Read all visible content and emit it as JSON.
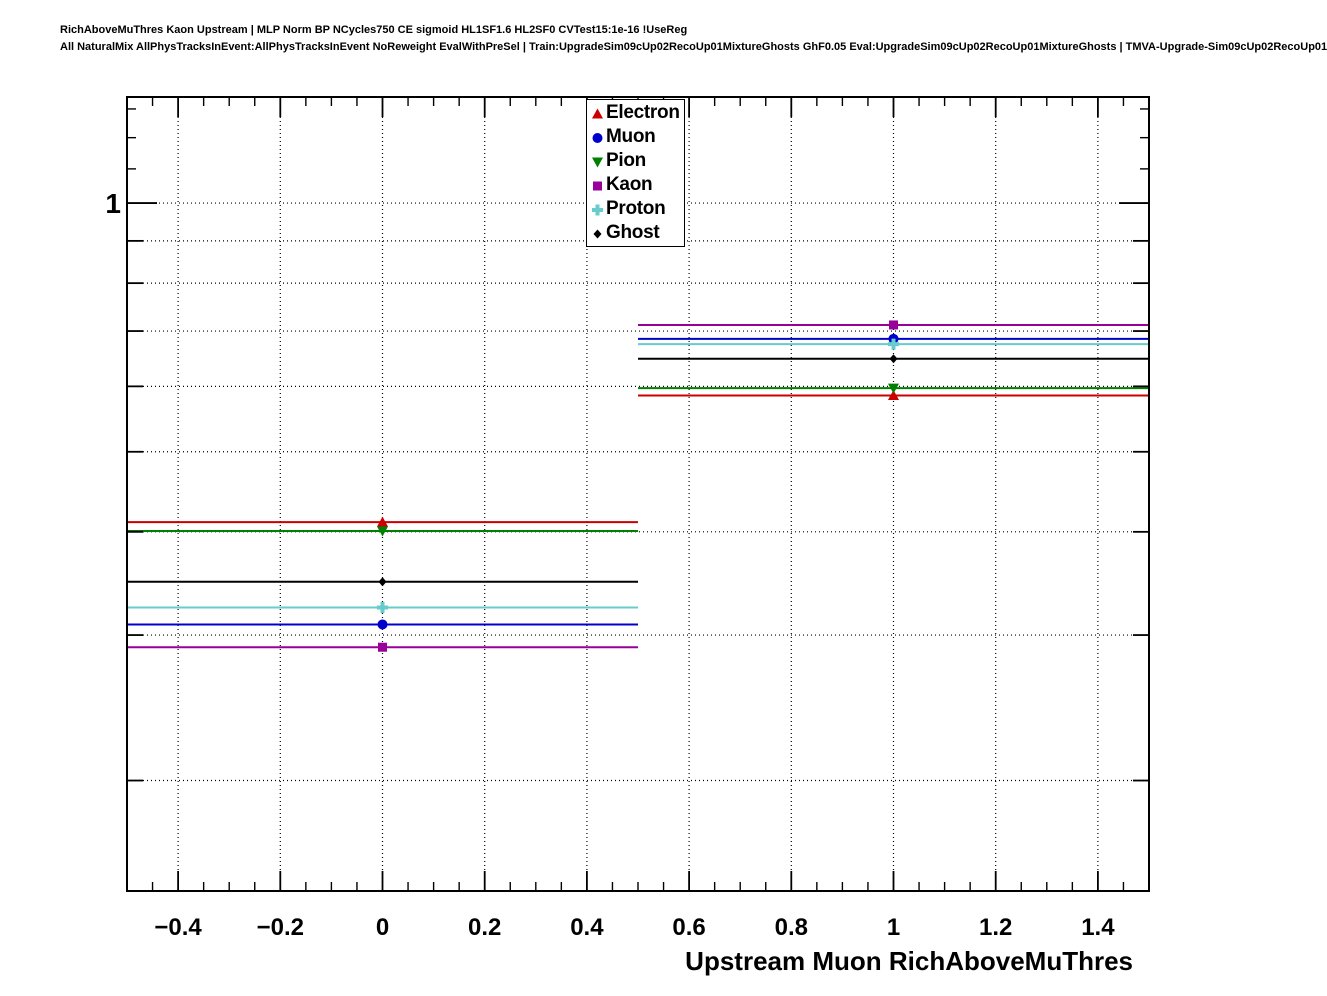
{
  "header": {
    "line1": "RichAboveMuThres Kaon Upstream | MLP Norm BP NCycles750 CE sigmoid HL1SF1.6 HL2SF0 CVTest15:1e-16 !UseReg",
    "line2": "All NaturalMix AllPhysTracksInEvent:AllPhysTracksInEvent NoReweight EvalWithPreSel | Train:UpgradeSim09cUp02RecoUp01MixtureGhosts GhF0.05 Eval:UpgradeSim09cUp02RecoUp01MixtureGhosts | TMVA-Upgrade-Sim09cUp02RecoUp01"
  },
  "axes": {
    "x": {
      "title": "Upstream Muon RichAboveMuThres",
      "min": -0.5,
      "max": 1.5,
      "tick_labels": [
        {
          "value": -0.4,
          "label": "−0.4"
        },
        {
          "value": -0.2,
          "label": "−0.2"
        },
        {
          "value": 0,
          "label": "0"
        },
        {
          "value": 0.2,
          "label": "0.2"
        },
        {
          "value": 0.4,
          "label": "0.4"
        },
        {
          "value": 0.6,
          "label": "0.6"
        },
        {
          "value": 0.8,
          "label": "0.8"
        },
        {
          "value": 1,
          "label": "1"
        },
        {
          "value": 1.2,
          "label": "1.2"
        },
        {
          "value": 1.4,
          "label": "1.4"
        }
      ],
      "minor_tick_step": 0.05
    },
    "y": {
      "scale": "log",
      "min": 0.147,
      "max": 1.344,
      "grid_values": [
        1.0,
        0.9,
        0.8,
        0.7,
        0.6,
        0.5,
        0.4,
        0.3,
        0.2
      ],
      "minor_ticks": [
        1.1,
        1.2,
        1.3
      ],
      "tick_labels": [
        {
          "value": 1,
          "label": "1"
        }
      ]
    }
  },
  "chart_data": {
    "type": "scatter",
    "title": "",
    "xlabel": "Upstream Muon RichAboveMuThres",
    "ylabel": "",
    "xlim": [
      -0.5,
      1.5
    ],
    "ylim_log": [
      0.147,
      1.344
    ],
    "grid": true,
    "legend_position": "top-center",
    "x_bins": [
      {
        "center": 0,
        "low": -0.5,
        "high": 0.5
      },
      {
        "center": 1,
        "low": 0.5,
        "high": 1.5
      }
    ],
    "series": [
      {
        "name": "Electron",
        "color": "#cc0000",
        "marker": "triangle-up",
        "values": [
          0.411,
          0.585
        ]
      },
      {
        "name": "Muon",
        "color": "#0000cc",
        "marker": "circle",
        "values": [
          0.309,
          0.685
        ]
      },
      {
        "name": "Pion",
        "color": "#008000",
        "marker": "triangle-down",
        "values": [
          0.401,
          0.597
        ]
      },
      {
        "name": "Kaon",
        "color": "#990099",
        "marker": "square",
        "values": [
          0.29,
          0.712
        ]
      },
      {
        "name": "Proton",
        "color": "#66cccc",
        "marker": "plus",
        "values": [
          0.324,
          0.675
        ]
      },
      {
        "name": "Ghost",
        "color": "#000000",
        "marker": "diamond",
        "values": [
          0.348,
          0.648
        ]
      }
    ]
  },
  "legend": {
    "items": [
      "Electron",
      "Muon",
      "Pion",
      "Kaon",
      "Proton",
      "Ghost"
    ]
  }
}
